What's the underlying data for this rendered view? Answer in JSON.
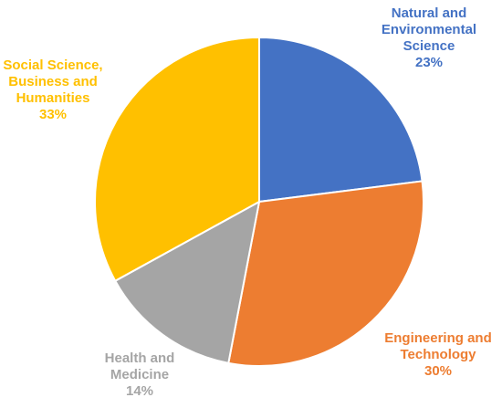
{
  "chart_data": {
    "type": "pie",
    "start_angle_deg": 0,
    "direction": "clockwise",
    "slices": [
      {
        "name": "Natural and Environmental Science",
        "label_lines": [
          "Natural and",
          "Environmental",
          "Science"
        ],
        "value": 23,
        "pct_label": "23%",
        "color": "#4472C4"
      },
      {
        "name": "Engineering and Technology",
        "label_lines": [
          "Engineering and",
          "Technology"
        ],
        "value": 30,
        "pct_label": "30%",
        "color": "#ED7D31"
      },
      {
        "name": "Health and Medicine",
        "label_lines": [
          "Health and",
          "Medicine"
        ],
        "value": 14,
        "pct_label": "14%",
        "color": "#A5A5A5"
      },
      {
        "name": "Social Science, Business and Humanities",
        "label_lines": [
          "Social Science,",
          "Business and",
          "Humanities"
        ],
        "value": 33,
        "pct_label": "33%",
        "color": "#FFC000"
      }
    ]
  }
}
